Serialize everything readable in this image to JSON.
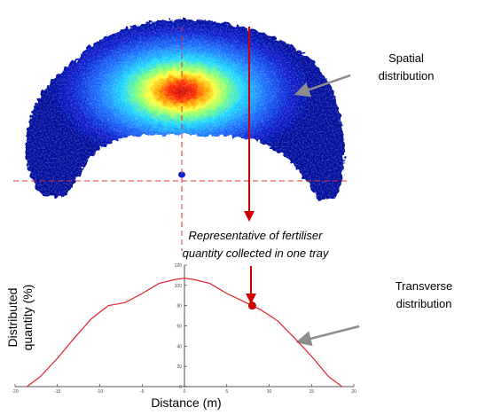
{
  "labels": {
    "spatial_line1": "Spatial",
    "spatial_line2": "distribution",
    "transverse_line1": "Transverse",
    "transverse_line2": "distribution",
    "representative_line1": "Representative of fertiliser",
    "representative_line2": "quantity collected in one tray",
    "xlabel": "Distance (m)",
    "ylabel_line1": "Distributed",
    "ylabel_line2": "quantity (%)"
  },
  "colors": {
    "curve": "#e0202a",
    "arrow": "#cc0000",
    "pointer": "#8c8c8c",
    "dash": "#e03030"
  },
  "chart_data": {
    "type": "line",
    "title": "",
    "xlabel": "Distance (m)",
    "ylabel": "Distributed quantity (%)",
    "xlim": [
      -20,
      20
    ],
    "ylim": [
      0,
      120
    ],
    "xticks": [
      "-20",
      "-15",
      "-10",
      "-5",
      "0",
      "5",
      "10",
      "15",
      "20"
    ],
    "yticks": [
      "0",
      "20",
      "40",
      "60",
      "80",
      "100",
      "120"
    ],
    "grid": false,
    "highlight_point": {
      "x": 8,
      "y": 80
    },
    "x": [
      -18.6,
      -17,
      -15,
      -13,
      -11,
      -9,
      -7,
      -5,
      -3,
      -1,
      0,
      1,
      3,
      5,
      7,
      8,
      9,
      11,
      13,
      15,
      17,
      18.6
    ],
    "y": [
      0,
      10,
      28,
      48,
      67,
      80,
      83,
      92,
      102,
      106,
      107,
      106,
      102,
      92,
      84,
      80,
      76,
      65,
      48,
      30,
      10,
      0
    ]
  }
}
